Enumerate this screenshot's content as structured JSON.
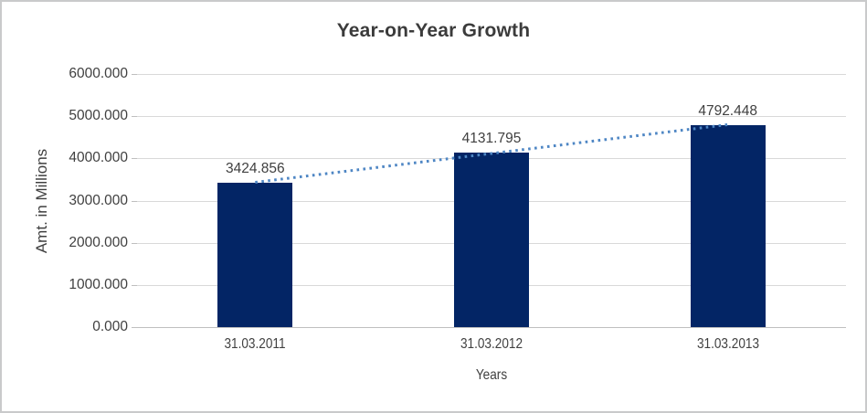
{
  "chart_data": {
    "type": "bar",
    "title": "Year-on-Year Growth",
    "xlabel": "Years",
    "ylabel": "Amt. in Millions",
    "categories": [
      "31.03.2011",
      "31.03.2012",
      "31.03.2013"
    ],
    "values": [
      3424.856,
      4131.795,
      4792.448
    ],
    "data_labels": [
      "3424.856",
      "4131.795",
      "4792.448"
    ],
    "ylim": [
      0,
      6000
    ],
    "ytick_step": 1000,
    "ytick_labels": [
      "0.000",
      "1000.000",
      "2000.000",
      "3000.000",
      "4000.000",
      "5000.000",
      "6000.000"
    ],
    "grid": true,
    "legend": "none",
    "trendline": {
      "type": "linear",
      "style": "dotted",
      "color": "#4e86c4"
    },
    "colors": {
      "bar_fill": "#032565",
      "gridline": "#d9d9d9",
      "axis_line": "#bfbfbf",
      "text": "#404040",
      "title_text": "#3b3b3b",
      "border": "#c9cacb",
      "background": "#ffffff"
    }
  }
}
